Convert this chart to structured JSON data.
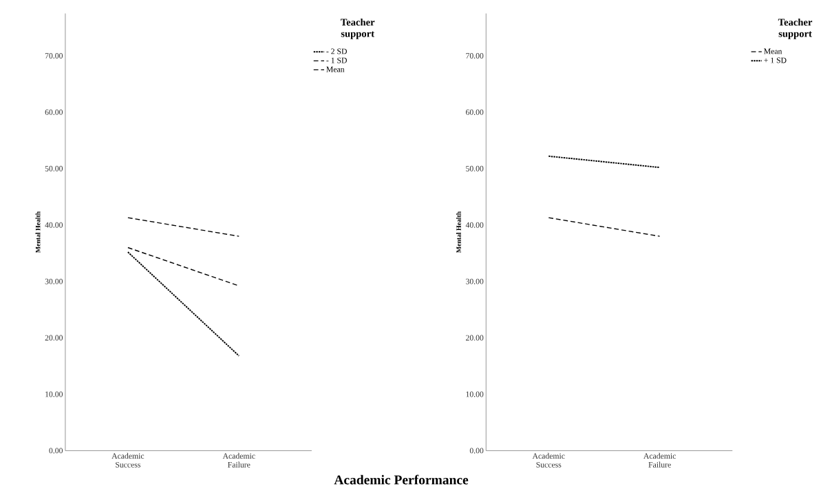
{
  "chart_data": [
    {
      "type": "line",
      "ylabel": "Mental Health",
      "xlabel": "Academic Performance",
      "legend_title": "Teacher support",
      "legend": "top right",
      "categories": [
        "Academic\nSuccess",
        "Academic\nFailure"
      ],
      "ylim": [
        0,
        77.5
      ],
      "yticks": [
        {
          "value": 0,
          "label": "0.00"
        },
        {
          "value": 10,
          "label": "10.00"
        },
        {
          "value": 20,
          "label": "20.00"
        },
        {
          "value": 30,
          "label": "30.00"
        },
        {
          "value": 40,
          "label": "40.00"
        },
        {
          "value": 50,
          "label": "50.00"
        },
        {
          "value": 60,
          "label": "60.00"
        },
        {
          "value": 70,
          "label": "70.00"
        }
      ],
      "grid": false,
      "marker": "none",
      "series": [
        {
          "name": "- 2 SD",
          "color": "#000000",
          "line_style": "dotted",
          "values": [
            35.2,
            16.8
          ]
        },
        {
          "name": "- 1 SD",
          "color": "#000000",
          "line_style": "dashed",
          "values": [
            36.0,
            29.2
          ]
        },
        {
          "name": "Mean",
          "color": "#000000",
          "line_style": "dashed",
          "values": [
            41.3,
            38.0
          ]
        }
      ]
    },
    {
      "type": "line",
      "ylabel": "Mental Health",
      "legend_title": "Teacher support",
      "legend": "top right",
      "categories": [
        "Academic\nSuccess",
        "Academic\nFailure"
      ],
      "ylim": [
        0,
        77.5
      ],
      "yticks": [
        {
          "value": 0,
          "label": "0.00"
        },
        {
          "value": 10,
          "label": "10.00"
        },
        {
          "value": 20,
          "label": "20.00"
        },
        {
          "value": 30,
          "label": "30.00"
        },
        {
          "value": 40,
          "label": "40.00"
        },
        {
          "value": 50,
          "label": "50.00"
        },
        {
          "value": 60,
          "label": "60.00"
        },
        {
          "value": 70,
          "label": "70.00"
        }
      ],
      "grid": false,
      "marker": "none",
      "series": [
        {
          "name": "Mean",
          "color": "#000000",
          "line_style": "dashed",
          "values": [
            41.3,
            38.0
          ]
        },
        {
          "name": "+ 1 SD",
          "color": "#000000",
          "line_style": "dotted",
          "values": [
            52.2,
            50.2
          ]
        }
      ]
    }
  ]
}
